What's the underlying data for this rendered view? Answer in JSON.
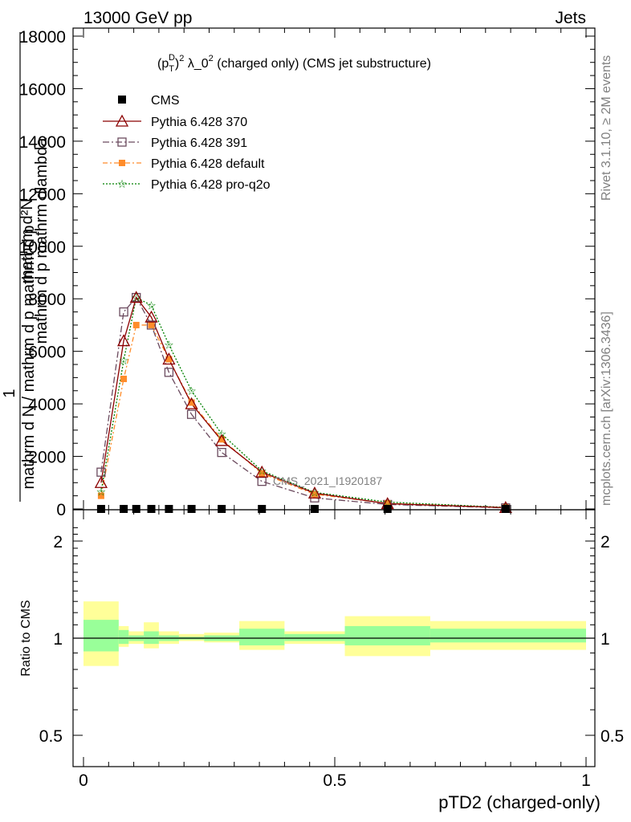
{
  "header": {
    "left": "13000 GeV pp",
    "right": "Jets"
  },
  "side_text": {
    "rivet": "Rivet 3.1.10, ≥ 2M events",
    "mcplots": "mcplots.cern.ch [arXiv:1306.3436]"
  },
  "watermark": "CMS_2021_I1920187",
  "colors": {
    "cms": "#000000",
    "p370": "#8b0000",
    "p391": "#6b4a5e",
    "pdefault": "#ff8c2a",
    "pq2o": "#008000",
    "band_outer": "#ffff99",
    "band_inner": "#99ff99"
  },
  "chart_data": [
    {
      "type": "line",
      "title_parts": {
        "base": "(p",
        "sup_d": "D",
        "sub_t": "T",
        "after": ")",
        "sup_2": "2",
        "lambda": " λ_0",
        "sup_2b": "2",
        "rest": " (charged only) (CMS jet substructure)"
      },
      "ylabel_lines": [
        "mathrm d",
        "mathrm dp",
        "mathrm d N / mathrm dp",
        "1"
      ],
      "ylabel_sup": "2",
      "ylabel_text": {
        "l1": "mathrm d²N",
        "l2": "mathrm d p  mathrm dlambda",
        "l3": "mathrm d N / mathrm d p  mathrm d p",
        "num": "1"
      },
      "xlim": [
        0,
        1
      ],
      "ylim": [
        0,
        18000
      ],
      "yticks": [
        "0",
        "2000",
        "4000",
        "6000",
        "8000",
        "10000",
        "12000",
        "14000",
        "16000",
        "18000"
      ],
      "xticks": [
        "0",
        "0.5",
        "1"
      ],
      "legend": [
        "CMS",
        "Pythia 6.428 370",
        "Pythia 6.428 391",
        "Pythia 6.428 default",
        "Pythia 6.428 pro-q2o"
      ],
      "x": [
        0.035,
        0.08,
        0.105,
        0.135,
        0.17,
        0.215,
        0.275,
        0.355,
        0.46,
        0.605,
        0.84
      ],
      "series": [
        {
          "name": "CMS",
          "values": [
            0,
            0,
            0,
            0,
            0,
            0,
            0,
            0,
            0,
            0,
            0
          ]
        },
        {
          "name": "Pythia 6.428 370",
          "values": [
            1000,
            6400,
            8050,
            7300,
            5700,
            4000,
            2600,
            1400,
            600,
            200,
            50
          ]
        },
        {
          "name": "Pythia 6.428 391",
          "values": [
            1400,
            7500,
            8050,
            7000,
            5200,
            3600,
            2150,
            1050,
            420,
            170,
            40
          ]
        },
        {
          "name": "Pythia 6.428 default",
          "values": [
            500,
            4950,
            7000,
            7000,
            5700,
            4050,
            2650,
            1350,
            560,
            210,
            50
          ]
        },
        {
          "name": "Pythia 6.428 pro-q2o",
          "values": [
            650,
            5650,
            8050,
            7750,
            6250,
            4500,
            2850,
            1450,
            630,
            260,
            60
          ]
        }
      ]
    },
    {
      "type": "area",
      "ylabel": "Ratio to CMS",
      "xlabel": "pTD2 (charged-only)",
      "xlim": [
        0,
        1
      ],
      "ylim": [
        0.4,
        2.3
      ],
      "log_scale": true,
      "yticks": [
        "0.5",
        "1",
        "2"
      ],
      "xticks": [
        "0",
        "0.5",
        "1"
      ],
      "bins": [
        {
          "lo": 0.0,
          "hi": 0.07,
          "inner": [
            0.91,
            1.14
          ],
          "outer": [
            0.82,
            1.3
          ]
        },
        {
          "lo": 0.07,
          "hi": 0.09,
          "inner": [
            0.96,
            1.06
          ],
          "outer": [
            0.94,
            1.09
          ]
        },
        {
          "lo": 0.09,
          "hi": 0.12,
          "inner": [
            0.98,
            1.02
          ],
          "outer": [
            0.96,
            1.05
          ]
        },
        {
          "lo": 0.12,
          "hi": 0.15,
          "inner": [
            0.96,
            1.05
          ],
          "outer": [
            0.93,
            1.12
          ]
        },
        {
          "lo": 0.15,
          "hi": 0.19,
          "inner": [
            0.98,
            1.02
          ],
          "outer": [
            0.96,
            1.05
          ]
        },
        {
          "lo": 0.19,
          "hi": 0.24,
          "inner": [
            0.99,
            1.01
          ],
          "outer": [
            0.98,
            1.03
          ]
        },
        {
          "lo": 0.24,
          "hi": 0.31,
          "inner": [
            0.98,
            1.02
          ],
          "outer": [
            0.97,
            1.04
          ]
        },
        {
          "lo": 0.31,
          "hi": 0.4,
          "inner": [
            0.95,
            1.07
          ],
          "outer": [
            0.92,
            1.13
          ]
        },
        {
          "lo": 0.4,
          "hi": 0.52,
          "inner": [
            0.98,
            1.03
          ],
          "outer": [
            0.96,
            1.05
          ]
        },
        {
          "lo": 0.52,
          "hi": 0.69,
          "inner": [
            0.95,
            1.09
          ],
          "outer": [
            0.88,
            1.17
          ]
        },
        {
          "lo": 0.69,
          "hi": 1.0,
          "inner": [
            0.97,
            1.07
          ],
          "outer": [
            0.92,
            1.13
          ]
        }
      ]
    }
  ]
}
